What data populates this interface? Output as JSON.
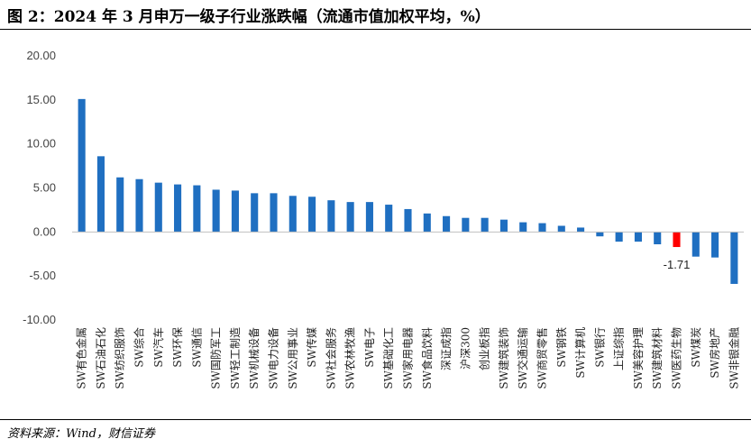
{
  "header": {
    "title": "图 2：2024 年 3 月申万一级子行业涨跌幅（流通市值加权平均，%）"
  },
  "footer": {
    "source": "资料来源：Wind，财信证券"
  },
  "chart_data": {
    "type": "bar",
    "title": "",
    "xlabel": "",
    "ylabel": "",
    "ylim": [
      -10,
      20
    ],
    "yticks": [
      "20.00",
      "15.00",
      "10.00",
      "5.00",
      "0.00",
      "-5.00",
      "-10.00"
    ],
    "grid": false,
    "default_color": "#1f6fc1",
    "highlight_color": "#ff0000",
    "categories": [
      "SW有色金属",
      "SW石油石化",
      "SW纺织服饰",
      "SW综合",
      "SW汽车",
      "SW环保",
      "SW通信",
      "SW国防军工",
      "SW轻工制造",
      "SW机械设备",
      "SW电力设备",
      "SW公用事业",
      "SW传媒",
      "SW社会服务",
      "SW农林牧渔",
      "SW电子",
      "SW基础化工",
      "SW家用电器",
      "SW食品饮料",
      "深证成指",
      "沪深300",
      "创业板指",
      "SW建筑装饰",
      "SW交通运输",
      "SW商贸零售",
      "SW钢铁",
      "SW计算机",
      "SW银行",
      "上证综指",
      "SW美容护理",
      "SW建筑材料",
      "SW医药生物",
      "SW煤炭",
      "SW房地产",
      "SW非银金融"
    ],
    "values": [
      15.1,
      8.6,
      6.2,
      6.0,
      5.6,
      5.4,
      5.3,
      4.8,
      4.7,
      4.4,
      4.4,
      4.1,
      4.0,
      3.6,
      3.4,
      3.4,
      3.1,
      2.6,
      2.1,
      1.8,
      1.6,
      1.6,
      1.4,
      1.1,
      1.0,
      0.7,
      0.5,
      -0.5,
      -1.1,
      -1.1,
      -1.4,
      -1.71,
      -2.8,
      -2.9,
      -5.9
    ],
    "highlight_index": 31,
    "data_labels": [
      {
        "index": 31,
        "text": "-1.71"
      }
    ]
  }
}
